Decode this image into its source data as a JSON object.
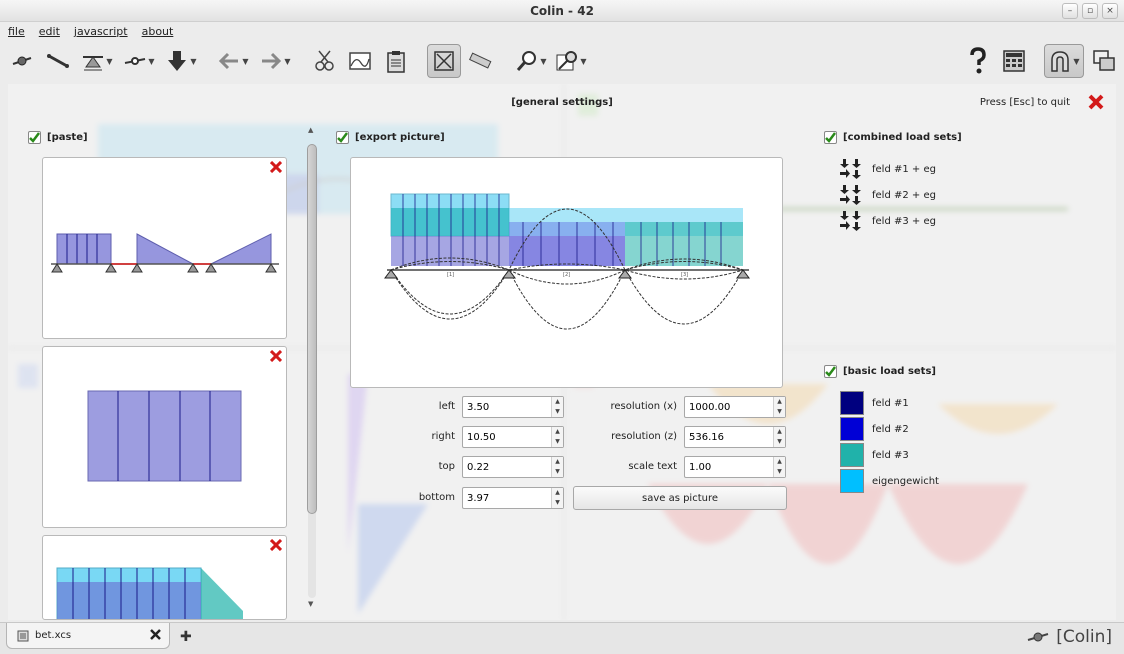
{
  "window": {
    "title": "Colin - 42"
  },
  "menu": [
    "file",
    "edit",
    "javascript",
    "about"
  ],
  "toolbar": {
    "icons": [
      "node-tool-icon",
      "beam-tool-icon",
      "support-tool-icon",
      "hinge-tool-icon",
      "load-tool-icon",
      "undo-icon",
      "redo-icon",
      "scissors-icon",
      "image-icon",
      "clipboard-icon",
      "fit-view-icon",
      "ruler-icon",
      "zoom-icon",
      "probe-icon",
      "help-icon",
      "calculator-icon",
      "magnet-icon",
      "windows-icon"
    ]
  },
  "overlay": {
    "title": "[general settings]",
    "esc_hint": "Press [Esc] to quit",
    "paste": {
      "label": "[paste]"
    },
    "export": {
      "label": "[export picture]",
      "fields": [
        {
          "label": "left",
          "value": "3.50"
        },
        {
          "label": "right",
          "value": "10.50"
        },
        {
          "label": "top",
          "value": "0.22"
        },
        {
          "label": "bottom",
          "value": "3.97"
        }
      ],
      "resolution_fields": [
        {
          "label": "resolution (x)",
          "value": "1000.00"
        },
        {
          "label": "resolution (z)",
          "value": "536.16"
        },
        {
          "label": "scale text",
          "value": "1.00"
        }
      ],
      "save_label": "save as picture",
      "beam_labels": [
        "[1]",
        "[2]",
        "[3]"
      ]
    },
    "combined": {
      "label": "[combined load sets]",
      "items": [
        "feld #1 + eg",
        "feld #2 + eg",
        "feld #3 + eg"
      ]
    },
    "basic": {
      "label": "[basic load sets]",
      "items": [
        {
          "name": "feld #1",
          "color": "#00007f"
        },
        {
          "name": "feld #2",
          "color": "#0000d6"
        },
        {
          "name": "feld #3",
          "color": "#20b2aa"
        },
        {
          "name": "eigengewicht",
          "color": "#00bfff"
        }
      ]
    }
  },
  "statusbar": {
    "file_tab": "bet.xcs",
    "brand": "[Colin]"
  }
}
